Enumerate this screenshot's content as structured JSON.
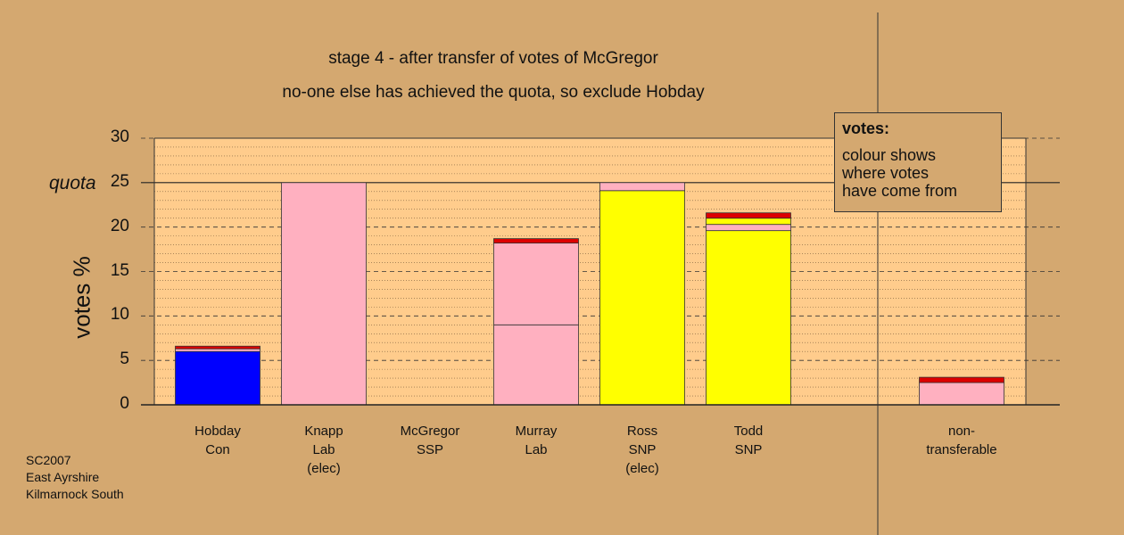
{
  "chart_data": {
    "type": "bar",
    "stacked": true,
    "title": "stage 4 - after transfer of votes of McGregor",
    "subtitle": "no-one else has achieved the quota, so exclude Hobday",
    "ylabel": "votes %",
    "ylim": [
      0,
      30
    ],
    "yticks": [
      "0",
      "5",
      "10",
      "15",
      "20",
      "25",
      "30"
    ],
    "quota_label": "quota",
    "quota_value": 25,
    "categories": [
      {
        "lines": [
          "Hobday",
          "Con"
        ]
      },
      {
        "lines": [
          "Knapp",
          "Lab",
          "(elec)"
        ]
      },
      {
        "lines": [
          "McGregor",
          "SSP"
        ]
      },
      {
        "lines": [
          "Murray",
          "Lab"
        ]
      },
      {
        "lines": [
          "Ross",
          "SNP",
          "(elec)"
        ]
      },
      {
        "lines": [
          "Todd",
          "SNP"
        ]
      },
      {
        "lines": [
          "non-",
          "transferable"
        ]
      }
    ],
    "stacks": [
      [
        {
          "value": 6.0,
          "color": "#0000ff"
        },
        {
          "value": 0.3,
          "color": "#ffb0c0"
        },
        {
          "value": 0.3,
          "color": "#dd0000"
        }
      ],
      [
        {
          "value": 25.0,
          "color": "#ffb0c0"
        }
      ],
      [],
      [
        {
          "value": 9.0,
          "color": "#ffb0c0"
        },
        {
          "value": 9.2,
          "color": "#ffb0c0"
        },
        {
          "value": 0.5,
          "color": "#dd0000"
        }
      ],
      [
        {
          "value": 24.1,
          "color": "#ffff00"
        },
        {
          "value": 0.9,
          "color": "#ffb0c0"
        }
      ],
      [
        {
          "value": 19.6,
          "color": "#ffff00"
        },
        {
          "value": 0.7,
          "color": "#ffb0c0"
        },
        {
          "value": 0.7,
          "color": "#ffff00"
        },
        {
          "value": 0.6,
          "color": "#dd0000"
        }
      ],
      [
        {
          "value": 2.5,
          "color": "#ffb0c0"
        },
        {
          "value": 0.6,
          "color": "#dd0000"
        }
      ]
    ],
    "grid": true,
    "colors": {
      "background": "#d4a870",
      "plot_background": "#ffcc8c",
      "candidate_transferred_pink": "#ffb0c0",
      "red_transfer": "#dd0000"
    }
  },
  "legend": {
    "title": "votes:",
    "lines": [
      "colour shows",
      "where votes",
      "have come from"
    ]
  },
  "source_note": [
    "SC2007",
    "East Ayrshire",
    "Kilmarnock South"
  ]
}
